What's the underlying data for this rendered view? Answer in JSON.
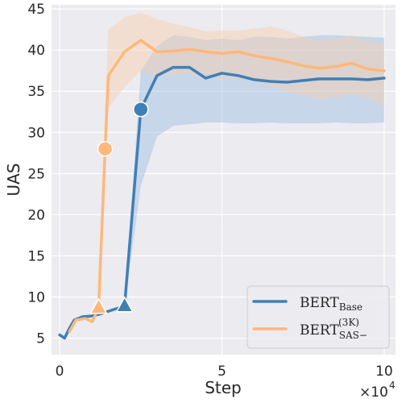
{
  "chart_data": {
    "type": "line",
    "xlabel": "Step",
    "ylabel": "UAS",
    "x_scale_label": "×10",
    "x_scale_exp": "4",
    "xlim": [
      -0.25,
      10.35
    ],
    "ylim": [
      3.0,
      45.5
    ],
    "x_ticks": [
      0,
      5,
      10
    ],
    "y_ticks": [
      5,
      10,
      15,
      20,
      25,
      30,
      35,
      40,
      45
    ],
    "grid": true,
    "legend_position": "lower-right",
    "series": [
      {
        "legend_main": "BERT",
        "legend_sub": "Base",
        "legend_sup": "",
        "color": "#3f7fb5",
        "band_color": "#9bbde0",
        "x": [
          0,
          0.15,
          0.3,
          0.45,
          0.7,
          1.0,
          1.3,
          1.6,
          2.0,
          2.5,
          3.0,
          3.5,
          4.0,
          4.5,
          5.0,
          5.5,
          6.0,
          6.5,
          7.0,
          7.5,
          8.0,
          8.5,
          9.0,
          9.5,
          10.0
        ],
        "y": [
          5.4,
          5.0,
          6.2,
          7.2,
          7.6,
          7.7,
          8.0,
          8.4,
          8.9,
          32.8,
          36.9,
          37.9,
          37.9,
          36.6,
          37.2,
          36.9,
          36.4,
          36.2,
          36.1,
          36.3,
          36.5,
          36.5,
          36.5,
          36.4,
          36.6
        ],
        "lower": [
          5.4,
          5.0,
          6.2,
          7.2,
          7.6,
          7.7,
          8.0,
          8.4,
          8.9,
          23.5,
          29.5,
          30.8,
          31.0,
          31.2,
          31.2,
          31.1,
          31.1,
          31.2,
          31.1,
          31.1,
          31.1,
          31.2,
          31.1,
          31.1,
          31.2
        ],
        "upper": [
          5.4,
          5.0,
          6.2,
          7.2,
          7.6,
          7.7,
          8.0,
          8.4,
          8.9,
          37.5,
          40.5,
          41.8,
          41.6,
          41.2,
          41.4,
          41.2,
          41.6,
          41.6,
          41.4,
          41.6,
          41.8,
          41.8,
          41.7,
          41.6,
          41.5
        ],
        "markers": [
          {
            "x": 2.0,
            "y": 8.9,
            "shape": "triangle"
          },
          {
            "x": 2.5,
            "y": 32.8,
            "shape": "circle"
          }
        ]
      },
      {
        "legend_main": "BERT",
        "legend_sub": "SAS−",
        "legend_sup": "(3K)",
        "color": "#ffb87a",
        "band_color": "#f8cfaa",
        "x": [
          0.3,
          0.5,
          0.8,
          1.0,
          1.2,
          1.4,
          1.5,
          2.0,
          2.5,
          3.0,
          3.5,
          4.0,
          4.5,
          5.0,
          5.5,
          6.0,
          6.5,
          7.0,
          7.5,
          8.0,
          8.5,
          9.0,
          9.5,
          10.0
        ],
        "y": [
          5.8,
          7.2,
          7.4,
          7.0,
          8.7,
          28.0,
          36.9,
          39.8,
          41.2,
          39.8,
          39.9,
          40.1,
          39.8,
          39.6,
          39.8,
          39.3,
          39.0,
          38.6,
          38.1,
          37.8,
          38.0,
          38.4,
          37.7,
          37.5
        ],
        "lower": [
          5.8,
          7.2,
          7.4,
          7.0,
          8.7,
          24.0,
          33.0,
          35.5,
          37.5,
          36.8,
          37.0,
          37.2,
          36.8,
          36.5,
          36.6,
          36.2,
          35.6,
          35.0,
          34.5,
          34.0,
          34.2,
          34.6,
          34.2,
          33.0
        ],
        "upper": [
          5.8,
          7.2,
          7.4,
          7.0,
          8.7,
          33.0,
          42.5,
          44.0,
          44.5,
          43.8,
          43.2,
          42.8,
          42.3,
          42.4,
          42.4,
          42.6,
          42.9,
          42.4,
          41.6,
          41.2,
          41.4,
          41.8,
          41.0,
          40.8
        ],
        "markers": [
          {
            "x": 1.2,
            "y": 8.7,
            "shape": "triangle"
          },
          {
            "x": 1.4,
            "y": 28.0,
            "shape": "circle"
          }
        ]
      }
    ]
  }
}
